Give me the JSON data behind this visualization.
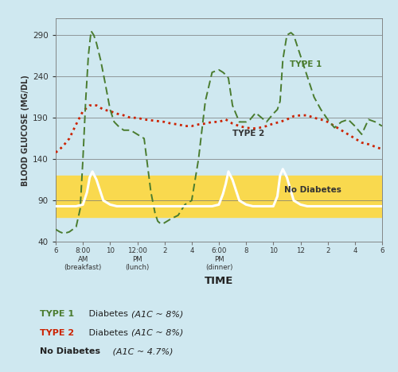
{
  "background_color": "#cfe8f0",
  "plot_bg_color": "#cfe8f0",
  "ylim": [
    40,
    310
  ],
  "yticks": [
    40,
    90,
    140,
    190,
    240,
    290
  ],
  "ylabel": "BLOOD GLUCOSE (MG/DL)",
  "xlabel": "TIME",
  "no_diabetes_band_low": 70,
  "no_diabetes_band_high": 120,
  "no_diabetes_band_color": "#f9d94e",
  "type1_color": "#4a7c2f",
  "type2_color": "#cc2200",
  "x_tick_labels": [
    "6",
    "8:00\nAM\n(breakfast)",
    "10",
    "12:00\nPM\n(lunch)",
    "2",
    "4",
    "6:00\nPM\n(dinner)",
    "8",
    "10",
    "12",
    "2",
    "4",
    "6"
  ],
  "x_tick_positions": [
    0,
    2,
    4,
    6,
    8,
    10,
    12,
    14,
    16,
    18,
    20,
    22,
    24
  ],
  "type1_x": [
    0,
    0.3,
    0.6,
    1.0,
    1.5,
    1.8,
    2.0,
    2.2,
    2.4,
    2.6,
    2.8,
    3.0,
    3.3,
    3.6,
    4.0,
    4.3,
    4.6,
    5.0,
    5.5,
    6.0,
    6.5,
    7.0,
    7.3,
    7.5,
    7.7,
    7.9,
    8.0,
    8.2,
    8.5,
    9.0,
    9.5,
    10.0,
    10.5,
    11.0,
    11.5,
    12.0,
    12.3,
    12.5,
    12.7,
    13.0,
    13.5,
    14.0,
    14.3,
    14.5,
    14.7,
    15.0,
    15.5,
    16.0,
    16.3,
    16.5,
    16.7,
    17.0,
    17.3,
    17.5,
    18.0,
    18.5,
    19.0,
    19.5,
    20.0,
    20.5,
    21.0,
    21.5,
    22.0,
    22.5,
    23.0,
    23.5,
    24.0
  ],
  "type1_y": [
    55,
    52,
    50,
    52,
    58,
    80,
    140,
    210,
    265,
    295,
    290,
    280,
    260,
    235,
    200,
    185,
    180,
    175,
    175,
    170,
    165,
    100,
    75,
    65,
    62,
    62,
    63,
    65,
    68,
    72,
    85,
    90,
    140,
    210,
    245,
    248,
    245,
    242,
    238,
    205,
    185,
    185,
    188,
    192,
    196,
    192,
    185,
    195,
    200,
    210,
    260,
    290,
    293,
    290,
    265,
    240,
    215,
    200,
    188,
    178,
    185,
    188,
    180,
    170,
    188,
    185,
    180
  ],
  "type2_x": [
    0,
    0.5,
    1.0,
    1.5,
    2.0,
    2.5,
    3.0,
    3.5,
    4.0,
    4.5,
    5.0,
    5.5,
    6.0,
    6.5,
    7.0,
    7.5,
    8.0,
    8.5,
    9.0,
    9.5,
    10.0,
    10.5,
    11.0,
    11.5,
    12.0,
    12.5,
    13.0,
    13.5,
    14.0,
    14.5,
    15.0,
    15.5,
    16.0,
    16.5,
    17.0,
    17.5,
    18.0,
    18.5,
    19.0,
    19.5,
    20.0,
    20.5,
    21.0,
    21.5,
    22.0,
    22.5,
    23.0,
    23.5,
    24.0
  ],
  "type2_y": [
    148,
    155,
    165,
    182,
    198,
    205,
    205,
    200,
    198,
    195,
    193,
    190,
    190,
    188,
    187,
    186,
    185,
    183,
    182,
    180,
    180,
    182,
    183,
    185,
    185,
    188,
    183,
    180,
    178,
    177,
    178,
    180,
    183,
    185,
    188,
    192,
    193,
    193,
    190,
    188,
    185,
    180,
    175,
    170,
    165,
    160,
    158,
    155,
    152
  ],
  "nd_x": [
    0,
    1.0,
    1.5,
    2.0,
    2.3,
    2.5,
    2.7,
    3.0,
    3.5,
    4.0,
    4.5,
    5.0,
    5.5,
    6.0,
    6.5,
    7.0,
    7.5,
    8.0,
    8.5,
    9.0,
    9.5,
    10.0,
    10.5,
    11.0,
    11.5,
    12.0,
    12.3,
    12.5,
    12.7,
    13.0,
    13.5,
    14.0,
    14.5,
    15.0,
    15.5,
    16.0,
    16.3,
    16.5,
    16.7,
    17.0,
    17.5,
    18.0,
    18.5,
    19.0,
    19.5,
    20.0,
    20.5,
    21.0,
    21.5,
    22.0,
    22.5,
    23.0,
    23.5,
    24.0
  ],
  "nd_y": [
    83,
    83,
    83,
    85,
    100,
    118,
    125,
    115,
    90,
    85,
    83,
    83,
    83,
    83,
    83,
    83,
    83,
    83,
    83,
    83,
    83,
    83,
    83,
    83,
    83,
    85,
    98,
    110,
    125,
    115,
    90,
    85,
    83,
    83,
    83,
    83,
    95,
    120,
    128,
    118,
    90,
    85,
    83,
    83,
    83,
    83,
    83,
    83,
    83,
    83,
    83,
    83,
    83,
    83
  ]
}
